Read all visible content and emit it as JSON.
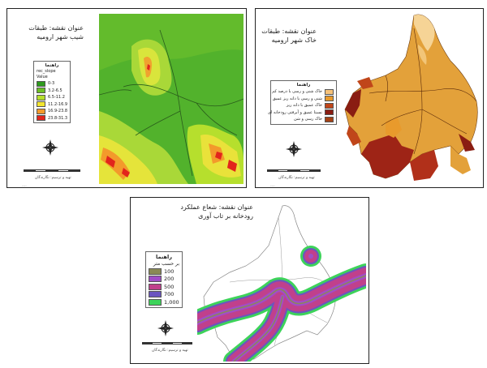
{
  "panels": [
    {
      "title_line1": "عنوان نقشه: طبقات",
      "title_line2": "شیب شهر ارومیه",
      "legend_title": "راهنما",
      "legend_subtitle": "rec_slope",
      "legend_field": "Value",
      "legend_items": [
        {
          "label": "0-3",
          "color": "#2e9a1e"
        },
        {
          "label": "3.2-6.5",
          "color": "#6cc025"
        },
        {
          "label": "6.5-11.2",
          "color": "#b6df2d"
        },
        {
          "label": "11.2-16.9",
          "color": "#f2e530"
        },
        {
          "label": "16.9-23.8",
          "color": "#f39a2b"
        },
        {
          "label": "23.8-31.3",
          "color": "#e2251c"
        }
      ],
      "credit": "تهیه و ترسیم: نگارندگان"
    },
    {
      "title_line1": "عنوان نقشه: طبقات",
      "title_line2": "خاک شهر ارومیه",
      "legend_title": "راهنما",
      "legend_items": [
        {
          "label": "خاک شنی و رسی با درصد کم",
          "color": "#f6c27a"
        },
        {
          "label": "شنی و رسی با دانه ریز عمیق",
          "color": "#e89a2c"
        },
        {
          "label": "خاک عمیق با دانه ریز",
          "color": "#c0461a"
        },
        {
          "label": "نسبتا عمیق و آبرفتی رودخانه ای",
          "color": "#8a1d12"
        },
        {
          "label": "خاک رسی و شن",
          "color": "#a44216"
        }
      ],
      "credit": "تهیه و ترسیم: نگارندگان"
    },
    {
      "title_line1": "عنوان نقشه: شعاع عملکرد",
      "title_line2": "رودخانه بر تاب آوری",
      "legend_title": "راهنما",
      "legend_subtitle": "بر حسب متر",
      "legend_items": [
        {
          "label": "100",
          "color": "#8a8a55"
        },
        {
          "label": "200",
          "color": "#a04ec7"
        },
        {
          "label": "500",
          "color": "#c0408c"
        },
        {
          "label": "700",
          "color": "#6a55c0"
        },
        {
          "label": "1,000",
          "color": "#3dd35a"
        }
      ],
      "credit": "تهیه و ترسیم: نگارندگان"
    }
  ],
  "colors": {
    "slope_base": "#4caf2a",
    "slope_mid": "#7cc62e",
    "slope_light": "#c6e33a",
    "soil_main": "#e2a43a",
    "soil_light": "#f6d496",
    "soil_dark": "#9e2416",
    "buffer_outer": "#3dd35a",
    "buffer_inner": "#c0408c"
  }
}
